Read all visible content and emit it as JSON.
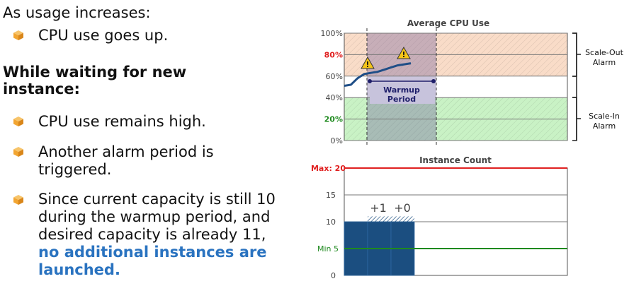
{
  "text": {
    "heading1": "As usage increases:",
    "bullet1": "CPU use goes up.",
    "heading2": "While waiting for new instance:",
    "bullet2": "CPU use remains high.",
    "bullet3": "Another alarm period is triggered.",
    "bullet4_plain": "Since current capacity is still 10 during the warmup period, and desired capacity is already 11,",
    "bullet4_emphasis": "no additional instances are launched."
  },
  "icons": {
    "bullet_icon": "cube-icon",
    "alarm_icon": "warning-triangle-icon"
  },
  "colors": {
    "accent_text": "#2a73c0",
    "bullet_icon": "#f2a531",
    "scale_out_band": "#f9dcc8",
    "scale_in_band": "#c9f2c5",
    "warmup_band": "#c7c3dc",
    "cpu_line": "#1f4e87",
    "instance_bar": "#1b4e80",
    "max_line": "#e02020",
    "min_line": "#1f8a1f"
  },
  "cpu_chart": {
    "title": "Average CPU Use",
    "y_ticks": [
      "0%",
      "20%",
      "40%",
      "60%",
      "80%",
      "100%"
    ],
    "highlight_ticks": {
      "red": "80%",
      "green": "20%"
    },
    "scale_out_label": [
      "Scale-Out",
      "Alarm"
    ],
    "scale_in_label": [
      "Scale-In",
      "Alarm"
    ],
    "warmup_label": [
      "Warmup",
      "Period"
    ],
    "cpu_series": [
      {
        "x": 0,
        "y": 51
      },
      {
        "x": 1,
        "y": 52
      },
      {
        "x": 2,
        "y": 58
      },
      {
        "x": 3,
        "y": 62
      },
      {
        "x": 4,
        "y": 63
      },
      {
        "x": 5,
        "y": 64
      },
      {
        "x": 6,
        "y": 66
      },
      {
        "x": 7,
        "y": 68
      },
      {
        "x": 8,
        "y": 70
      },
      {
        "x": 9,
        "y": 71
      },
      {
        "x": 10,
        "y": 72
      }
    ]
  },
  "instance_chart": {
    "title": "Instance Count",
    "y_ticks": [
      "0",
      "5",
      "10",
      "15",
      "20"
    ],
    "max_label": "Max: 20",
    "min_label": "Min 5",
    "current_capacity": 10,
    "desired_capacity": 11,
    "annotations": [
      "+1",
      "+0"
    ]
  }
}
